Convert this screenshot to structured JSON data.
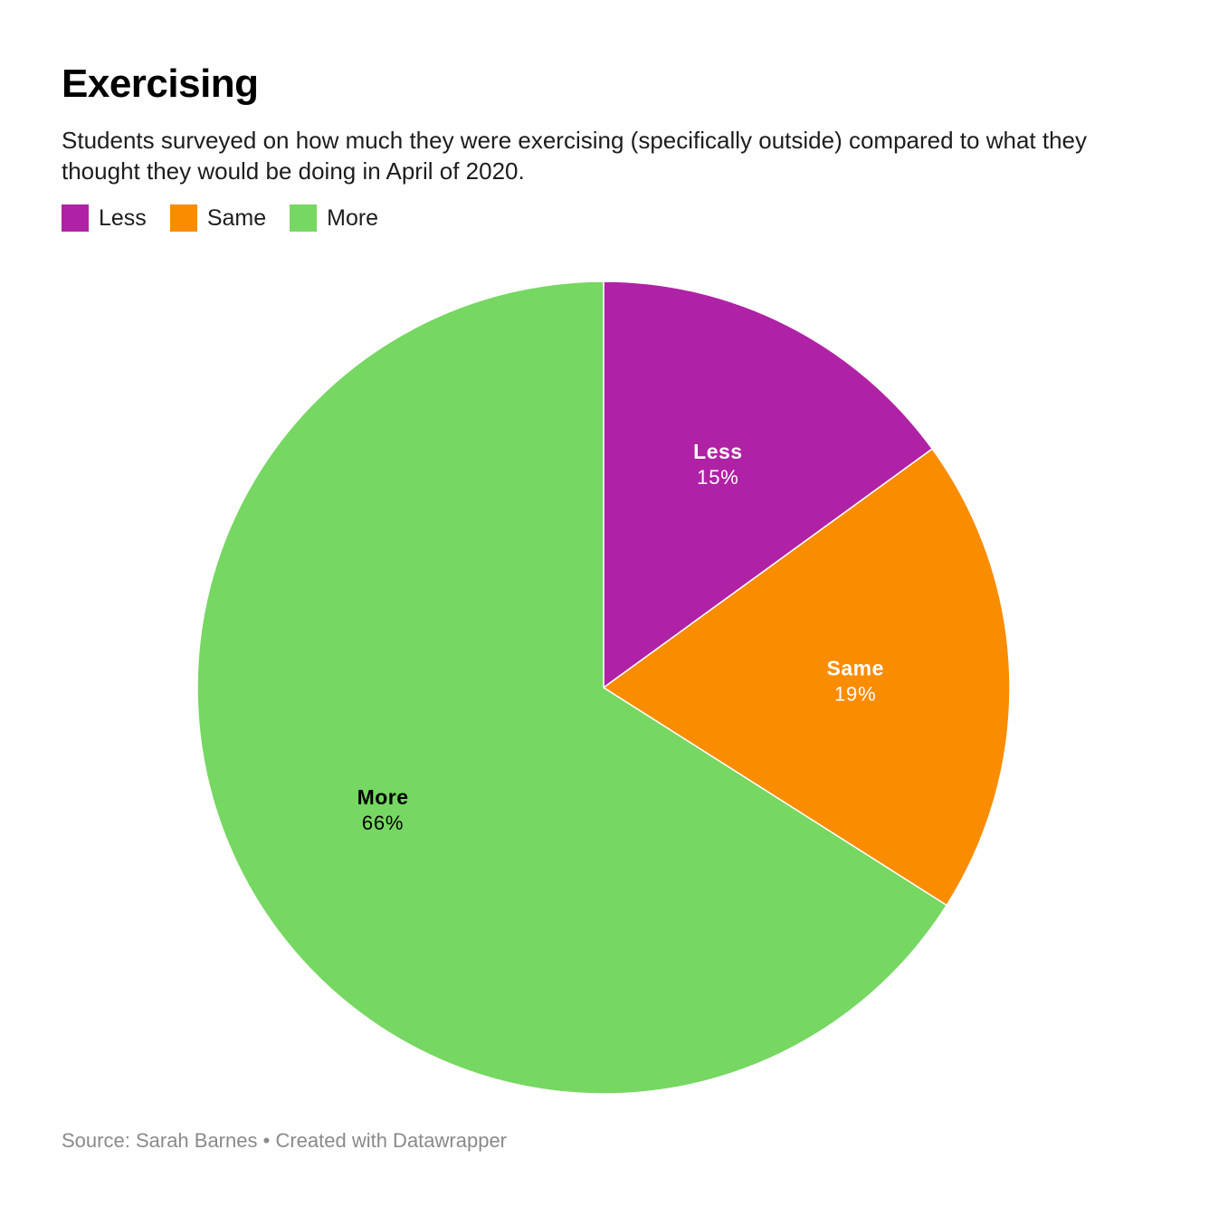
{
  "header": {
    "title": "Exercising",
    "subtitle": "Students surveyed on how much they were exercising (specifically outside) compared to what they thought they would be doing in April of 2020."
  },
  "legend": [
    {
      "label": "Less",
      "color": "#b022a5"
    },
    {
      "label": "Same",
      "color": "#fa8c00"
    },
    {
      "label": "More",
      "color": "#76d762"
    }
  ],
  "chart_data": {
    "type": "pie",
    "title": "Exercising",
    "categories": [
      "Less",
      "Same",
      "More"
    ],
    "values": [
      15,
      19,
      66
    ],
    "value_labels": [
      "15%",
      "19%",
      "66%"
    ],
    "colors": [
      "#b022a5",
      "#fa8c00",
      "#76d762"
    ],
    "label_colors": [
      "#ffffff",
      "#ffffff",
      "#000000"
    ],
    "legend_position": "top-left"
  },
  "footer": {
    "source_label": "Source:",
    "source": "Sarah Barnes",
    "separator": "•",
    "credit": "Created with Datawrapper"
  }
}
